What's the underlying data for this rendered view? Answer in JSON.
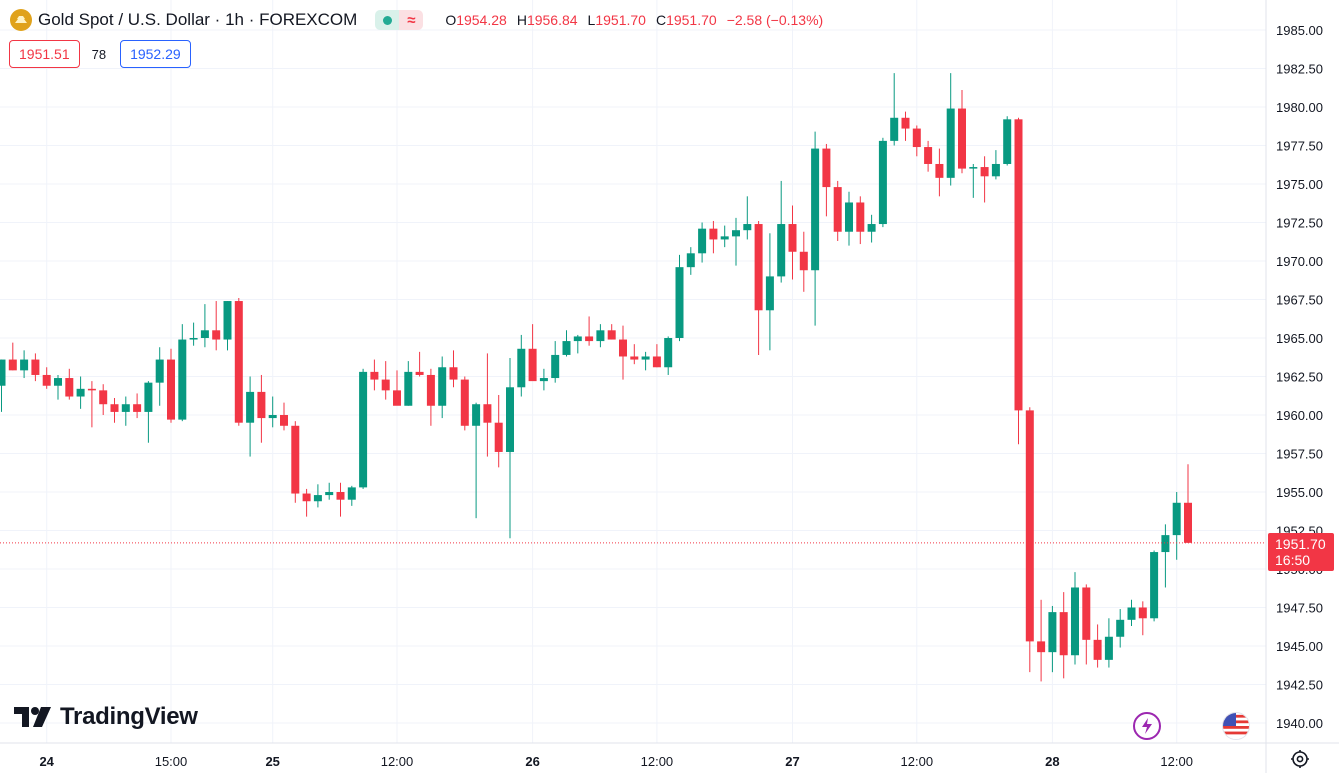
{
  "header": {
    "symbol_title": "Gold Spot / U.S. Dollar · 1h · FOREXCOM",
    "symbol_icon": "gold-coin-icon",
    "market_status_icon": "market-open-dot-icon",
    "session_icon": "session-wave-icon",
    "ohlc": {
      "o_label": "O",
      "o_value": "1954.28",
      "h_label": "H",
      "h_value": "1956.84",
      "l_label": "L",
      "l_value": "1951.70",
      "c_label": "C",
      "c_value": "1951.70",
      "change": "−2.58 (−0.13%)"
    }
  },
  "trade": {
    "bid": "1951.51",
    "spread": "78",
    "ask": "1952.29"
  },
  "last_price": {
    "value": "1951.70",
    "countdown": "16:50"
  },
  "watermark": {
    "text": "TradingView"
  },
  "colors": {
    "up": "#089981",
    "down": "#f23645",
    "grid": "#f0f3fa",
    "text": "#131722",
    "bid": "#f23645",
    "ask": "#2962ff"
  },
  "chart_data": {
    "type": "candlestick",
    "y_ticks": [
      "1985.00",
      "1982.50",
      "1980.00",
      "1977.50",
      "1975.00",
      "1972.50",
      "1970.00",
      "1967.50",
      "1965.00",
      "1962.50",
      "1960.00",
      "1957.50",
      "1955.00",
      "1952.50",
      "1950.00",
      "1947.50",
      "1945.00",
      "1942.50",
      "1940.00"
    ],
    "ylim": [
      1940.0,
      1985.0
    ],
    "x_ticks": [
      {
        "label": "24",
        "bold": true,
        "index": 4
      },
      {
        "label": "15:00",
        "bold": false,
        "index": 15
      },
      {
        "label": "25",
        "bold": true,
        "index": 24
      },
      {
        "label": "12:00",
        "bold": false,
        "index": 35
      },
      {
        "label": "26",
        "bold": true,
        "index": 47
      },
      {
        "label": "12:00",
        "bold": false,
        "index": 58
      },
      {
        "label": "27",
        "bold": true,
        "index": 70
      },
      {
        "label": "12:00",
        "bold": false,
        "index": 81
      },
      {
        "label": "28",
        "bold": true,
        "index": 93
      },
      {
        "label": "12:00",
        "bold": false,
        "index": 104
      }
    ],
    "ohlc": [
      [
        1961.9,
        1963.6,
        1960.2,
        1963.6
      ],
      [
        1963.6,
        1964.7,
        1962.9,
        1962.9
      ],
      [
        1962.9,
        1964.2,
        1962.4,
        1963.6
      ],
      [
        1963.6,
        1964.0,
        1962.2,
        1962.6
      ],
      [
        1962.6,
        1963.1,
        1961.7,
        1961.9
      ],
      [
        1961.9,
        1962.6,
        1961.0,
        1962.4
      ],
      [
        1962.4,
        1963.0,
        1961.0,
        1961.2
      ],
      [
        1961.2,
        1962.5,
        1960.4,
        1961.7
      ],
      [
        1961.7,
        1962.2,
        1959.2,
        1961.6
      ],
      [
        1961.6,
        1962.0,
        1960.0,
        1960.7
      ],
      [
        1960.7,
        1961.1,
        1959.5,
        1960.2
      ],
      [
        1960.2,
        1961.2,
        1959.3,
        1960.7
      ],
      [
        1960.7,
        1961.4,
        1959.8,
        1960.2
      ],
      [
        1960.2,
        1962.2,
        1958.2,
        1962.1
      ],
      [
        1962.1,
        1964.4,
        1960.6,
        1963.6
      ],
      [
        1963.6,
        1964.3,
        1959.5,
        1959.7
      ],
      [
        1959.7,
        1965.9,
        1959.6,
        1964.9
      ],
      [
        1964.9,
        1966.0,
        1964.5,
        1965.0
      ],
      [
        1965.0,
        1967.2,
        1964.4,
        1965.5
      ],
      [
        1965.5,
        1967.4,
        1964.2,
        1964.9
      ],
      [
        1964.9,
        1967.4,
        1964.2,
        1967.4
      ],
      [
        1967.4,
        1967.6,
        1959.3,
        1959.5
      ],
      [
        1959.5,
        1962.5,
        1957.3,
        1961.5
      ],
      [
        1961.5,
        1962.6,
        1958.2,
        1959.8
      ],
      [
        1959.8,
        1961.2,
        1959.2,
        1960.0
      ],
      [
        1960.0,
        1960.8,
        1959.0,
        1959.3
      ],
      [
        1959.3,
        1959.6,
        1954.3,
        1954.9
      ],
      [
        1954.9,
        1955.2,
        1953.4,
        1954.4
      ],
      [
        1954.4,
        1955.5,
        1954.0,
        1954.8
      ],
      [
        1954.8,
        1955.6,
        1954.5,
        1955.0
      ],
      [
        1955.0,
        1955.6,
        1953.4,
        1954.5
      ],
      [
        1954.5,
        1955.4,
        1954.1,
        1955.3
      ],
      [
        1955.3,
        1963.0,
        1955.2,
        1962.8
      ],
      [
        1962.8,
        1963.6,
        1961.6,
        1962.3
      ],
      [
        1962.3,
        1963.5,
        1961.0,
        1961.6
      ],
      [
        1961.6,
        1962.9,
        1960.8,
        1960.6
      ],
      [
        1960.6,
        1963.5,
        1960.6,
        1962.8
      ],
      [
        1962.8,
        1964.1,
        1962.5,
        1962.6
      ],
      [
        1962.6,
        1963.0,
        1959.3,
        1960.6
      ],
      [
        1960.6,
        1963.8,
        1959.8,
        1963.1
      ],
      [
        1963.1,
        1964.2,
        1961.8,
        1962.3
      ],
      [
        1962.3,
        1962.5,
        1959.0,
        1959.3
      ],
      [
        1959.3,
        1960.8,
        1953.3,
        1960.7
      ],
      [
        1960.7,
        1964.0,
        1957.3,
        1959.5
      ],
      [
        1959.5,
        1961.3,
        1956.6,
        1957.6
      ],
      [
        1957.6,
        1963.7,
        1952.0,
        1961.8
      ],
      [
        1961.8,
        1965.2,
        1961.2,
        1964.3
      ],
      [
        1964.3,
        1965.9,
        1962.3,
        1962.2
      ],
      [
        1962.2,
        1963.0,
        1961.6,
        1962.4
      ],
      [
        1962.4,
        1964.8,
        1962.1,
        1963.9
      ],
      [
        1963.9,
        1965.5,
        1963.8,
        1964.8
      ],
      [
        1964.8,
        1965.2,
        1964.0,
        1965.1
      ],
      [
        1965.1,
        1966.4,
        1964.5,
        1964.8
      ],
      [
        1964.8,
        1965.9,
        1964.4,
        1965.5
      ],
      [
        1965.5,
        1965.9,
        1964.9,
        1964.9
      ],
      [
        1964.9,
        1965.8,
        1962.3,
        1963.8
      ],
      [
        1963.8,
        1964.6,
        1963.3,
        1963.6
      ],
      [
        1963.6,
        1964.1,
        1962.9,
        1963.8
      ],
      [
        1963.8,
        1964.6,
        1963.1,
        1963.1
      ],
      [
        1963.1,
        1965.1,
        1962.6,
        1965.0
      ],
      [
        1965.0,
        1970.4,
        1964.8,
        1969.6
      ],
      [
        1969.6,
        1970.9,
        1969.1,
        1970.5
      ],
      [
        1970.5,
        1972.5,
        1969.9,
        1972.1
      ],
      [
        1972.1,
        1972.6,
        1970.5,
        1971.4
      ],
      [
        1971.4,
        1972.3,
        1970.9,
        1971.6
      ],
      [
        1971.6,
        1972.8,
        1969.7,
        1972.0
      ],
      [
        1972.0,
        1974.2,
        1971.4,
        1972.4
      ],
      [
        1972.4,
        1972.6,
        1963.9,
        1966.8
      ],
      [
        1966.8,
        1971.8,
        1964.2,
        1969.0
      ],
      [
        1969.0,
        1975.2,
        1968.6,
        1972.4
      ],
      [
        1972.4,
        1973.6,
        1968.8,
        1970.6
      ],
      [
        1970.6,
        1971.9,
        1968.0,
        1969.4
      ],
      [
        1969.4,
        1978.4,
        1965.8,
        1977.3
      ],
      [
        1977.3,
        1977.6,
        1972.9,
        1974.8
      ],
      [
        1974.8,
        1975.2,
        1971.3,
        1971.9
      ],
      [
        1971.9,
        1974.5,
        1971.0,
        1973.8
      ],
      [
        1973.8,
        1974.2,
        1971.1,
        1971.9
      ],
      [
        1971.9,
        1973.0,
        1971.2,
        1972.4
      ],
      [
        1972.4,
        1978.0,
        1972.2,
        1977.8
      ],
      [
        1977.8,
        1982.2,
        1977.5,
        1979.3
      ],
      [
        1979.3,
        1979.7,
        1977.8,
        1978.6
      ],
      [
        1978.6,
        1978.8,
        1976.8,
        1977.4
      ],
      [
        1977.4,
        1977.8,
        1975.8,
        1976.3
      ],
      [
        1976.3,
        1977.3,
        1974.2,
        1975.4
      ],
      [
        1975.4,
        1982.2,
        1974.9,
        1979.9
      ],
      [
        1979.9,
        1981.1,
        1975.7,
        1976.0
      ],
      [
        1976.0,
        1976.3,
        1974.1,
        1976.1
      ],
      [
        1976.1,
        1976.8,
        1973.8,
        1975.5
      ],
      [
        1975.5,
        1977.2,
        1975.3,
        1976.3
      ],
      [
        1976.3,
        1979.4,
        1976.2,
        1979.2
      ],
      [
        1979.2,
        1979.3,
        1958.1,
        1960.3
      ],
      [
        1960.3,
        1960.5,
        1943.3,
        1945.3
      ],
      [
        1945.3,
        1948.0,
        1942.7,
        1944.6
      ],
      [
        1944.6,
        1947.6,
        1943.3,
        1947.2
      ],
      [
        1947.2,
        1948.5,
        1942.9,
        1944.4
      ],
      [
        1944.4,
        1949.8,
        1943.8,
        1948.8
      ],
      [
        1948.8,
        1949.0,
        1943.8,
        1945.4
      ],
      [
        1945.4,
        1946.4,
        1943.6,
        1944.1
      ],
      [
        1944.1,
        1946.8,
        1943.6,
        1945.6
      ],
      [
        1945.6,
        1947.4,
        1944.9,
        1946.7
      ],
      [
        1946.7,
        1948.0,
        1946.3,
        1947.5
      ],
      [
        1947.5,
        1947.9,
        1945.7,
        1946.8
      ],
      [
        1946.8,
        1951.2,
        1946.6,
        1951.1
      ],
      [
        1951.1,
        1952.9,
        1948.8,
        1952.2
      ],
      [
        1952.2,
        1955.0,
        1950.6,
        1954.3
      ],
      [
        1954.3,
        1956.8,
        1951.7,
        1951.7
      ]
    ]
  }
}
